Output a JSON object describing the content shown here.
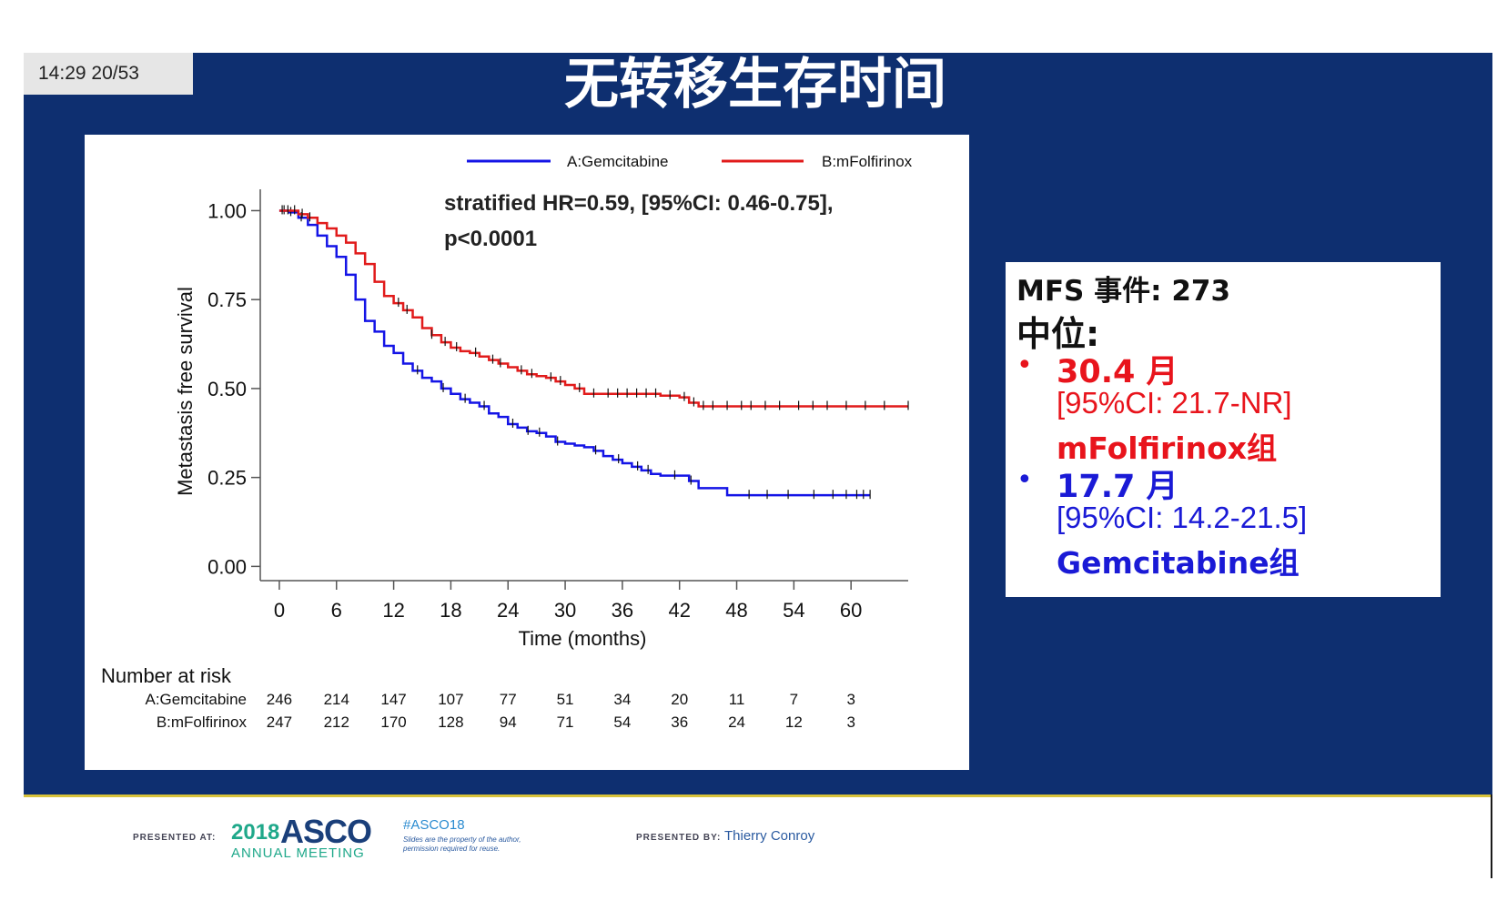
{
  "header": {
    "timestamp": "14:29   20/53",
    "title": "无转移生存时间"
  },
  "colors": {
    "background": "#0e2f70",
    "series_a": "#1414e6",
    "series_b": "#e11b1b",
    "accent_gold": "#d8c23a"
  },
  "chart_data": {
    "type": "line",
    "step": true,
    "title": "",
    "xlabel": "Time (months)",
    "ylabel": "Metastasis free survival",
    "xlim": [
      -2,
      66
    ],
    "ylim": [
      -0.04,
      1.06
    ],
    "x_ticks": [
      0,
      6,
      12,
      18,
      24,
      30,
      36,
      42,
      48,
      54,
      60
    ],
    "y_ticks": [
      0.0,
      0.25,
      0.5,
      0.75,
      1.0
    ],
    "y_tick_labels": [
      "0.00",
      "0.25",
      "0.50",
      "0.75",
      "1.00"
    ],
    "legend": {
      "placement": "top",
      "entries": [
        "A:Gemcitabine",
        "B:mFolfirinox"
      ]
    },
    "annotation": {
      "line1": "stratified HR=0.59, [95%CI: 0.46-0.75],",
      "line2": "p<0.0001"
    },
    "series": [
      {
        "name": "A:Gemcitabine",
        "color": "#1414e6",
        "x": [
          0,
          1,
          2,
          3,
          4,
          5,
          6,
          7,
          8,
          9,
          10,
          11,
          12,
          13,
          14,
          15,
          16,
          17,
          18,
          19,
          20,
          21,
          22,
          23,
          24,
          25,
          26,
          27,
          28,
          29,
          30,
          31,
          32,
          33,
          34,
          35,
          36,
          37,
          38,
          39,
          40,
          41,
          42,
          43,
          44,
          45,
          46,
          47,
          48,
          54,
          60,
          62
        ],
        "y": [
          1.0,
          0.995,
          0.98,
          0.96,
          0.93,
          0.9,
          0.87,
          0.82,
          0.75,
          0.69,
          0.66,
          0.62,
          0.6,
          0.57,
          0.55,
          0.53,
          0.52,
          0.5,
          0.485,
          0.47,
          0.46,
          0.45,
          0.43,
          0.42,
          0.4,
          0.39,
          0.38,
          0.375,
          0.365,
          0.35,
          0.345,
          0.34,
          0.335,
          0.325,
          0.31,
          0.3,
          0.29,
          0.28,
          0.27,
          0.26,
          0.255,
          0.255,
          0.255,
          0.24,
          0.22,
          0.22,
          0.22,
          0.2,
          0.2,
          0.2,
          0.2,
          0.2
        ],
        "censor_x": [
          0.5,
          1.2,
          2.3,
          14.5,
          17.2,
          19.5,
          21.5,
          24.5,
          26.1,
          27.3,
          29.2,
          33.2,
          35.6,
          37.6,
          38.7,
          41.5,
          43.2,
          49.3,
          51.2,
          53.4,
          56.1,
          58.1,
          59.5,
          60.6,
          61.3,
          62.0
        ]
      },
      {
        "name": "B:mFolfirinox",
        "color": "#e11b1b",
        "x": [
          0,
          1,
          2,
          3,
          4,
          5,
          6,
          7,
          8,
          9,
          10,
          11,
          12,
          13,
          14,
          15,
          16,
          17,
          18,
          19,
          20,
          21,
          22,
          23,
          24,
          25,
          26,
          27,
          28,
          29,
          30,
          31,
          32,
          33,
          34,
          35,
          36,
          37,
          38,
          39,
          40,
          41,
          42,
          43,
          44,
          45,
          46,
          47,
          48,
          54,
          60,
          66
        ],
        "y": [
          1.0,
          1.0,
          0.99,
          0.98,
          0.965,
          0.95,
          0.93,
          0.91,
          0.88,
          0.85,
          0.8,
          0.76,
          0.74,
          0.72,
          0.7,
          0.67,
          0.65,
          0.63,
          0.615,
          0.605,
          0.6,
          0.59,
          0.58,
          0.57,
          0.56,
          0.55,
          0.54,
          0.535,
          0.53,
          0.52,
          0.51,
          0.5,
          0.485,
          0.485,
          0.485,
          0.485,
          0.485,
          0.485,
          0.485,
          0.485,
          0.48,
          0.48,
          0.475,
          0.46,
          0.45,
          0.45,
          0.45,
          0.45,
          0.45,
          0.45,
          0.45,
          0.45
        ],
        "censor_x": [
          0.3,
          0.9,
          1.6,
          2.4,
          3.2,
          12.5,
          13.4,
          16.0,
          17.4,
          18.6,
          20.6,
          22.4,
          23.2,
          25.4,
          26.5,
          28.5,
          29.5,
          31.5,
          33.0,
          34.5,
          35.5,
          36.5,
          37.5,
          38.5,
          39.5,
          41.0,
          42.5,
          43.5,
          44.5,
          45.5,
          47.0,
          48.5,
          49.5,
          51.0,
          52.5,
          54.5,
          56.0,
          57.5,
          59.5,
          61.5,
          63.5,
          66.0
        ]
      }
    ],
    "risk_table": {
      "title": "Number at risk",
      "times": [
        0,
        6,
        12,
        18,
        24,
        30,
        36,
        42,
        48,
        54,
        60
      ],
      "rows": [
        {
          "label": "A:Gemcitabine",
          "values": [
            "246",
            "214",
            "147",
            "107",
            "77",
            "51",
            "34",
            "20",
            "11",
            "7",
            "3"
          ]
        },
        {
          "label": "B:mFolfirinox",
          "values": [
            "247",
            "212",
            "170",
            "128",
            "94",
            "71",
            "54",
            "36",
            "24",
            "12",
            "3"
          ]
        }
      ]
    }
  },
  "info_box": {
    "events": "MFS 事件: 273",
    "median_label": "中位:",
    "bullet": "•",
    "b_median": "30.4 月",
    "b_ci": "[95%CI: 21.7-NR]",
    "b_group": "mFolfirinox组",
    "a_median": "17.7 月",
    "a_ci": "[95%CI: 14.2-21.5]",
    "a_group": "Gemcitabine组"
  },
  "footer": {
    "presented_at": "PRESENTED AT:",
    "asco_year": "2018",
    "asco_name": "ASCO",
    "asco_meeting": "ANNUAL MEETING",
    "hashtag": "#ASCO18",
    "disclaimer": "Slides are the property of the author, permission required for reuse.",
    "presented_by": "PRESENTED BY:",
    "presenter": "Thierry Conroy"
  }
}
